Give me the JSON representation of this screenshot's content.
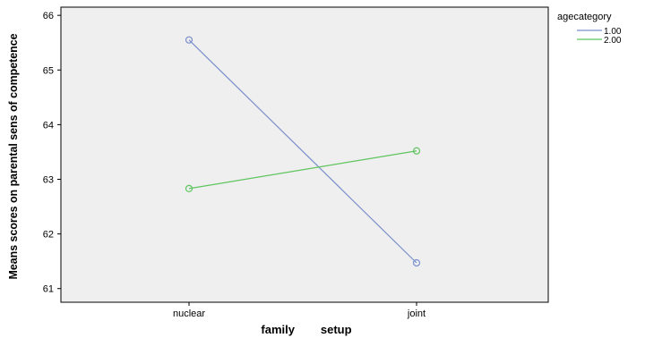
{
  "chart_data": {
    "type": "line",
    "title": "",
    "xlabel": "family        setup",
    "ylabel": "Means scores on parental sens of competence",
    "categories": [
      "nuclear",
      "joint"
    ],
    "ylim": [
      60.75,
      66.15
    ],
    "yticks": [
      "61",
      "62",
      "63",
      "64",
      "65",
      "66"
    ],
    "grid": false,
    "legend": {
      "title": "agecategory",
      "placement": "top-right",
      "entries": [
        "1.00",
        "2.00"
      ]
    },
    "series": [
      {
        "name": "1.00",
        "values": [
          65.55,
          61.47
        ],
        "color": "#7b8fcc"
      },
      {
        "name": "2.00",
        "values": [
          62.83,
          63.52
        ],
        "color": "#5fc45f"
      }
    ],
    "colors": {
      "plot_background": "#efefef",
      "frame": "#000000"
    }
  }
}
